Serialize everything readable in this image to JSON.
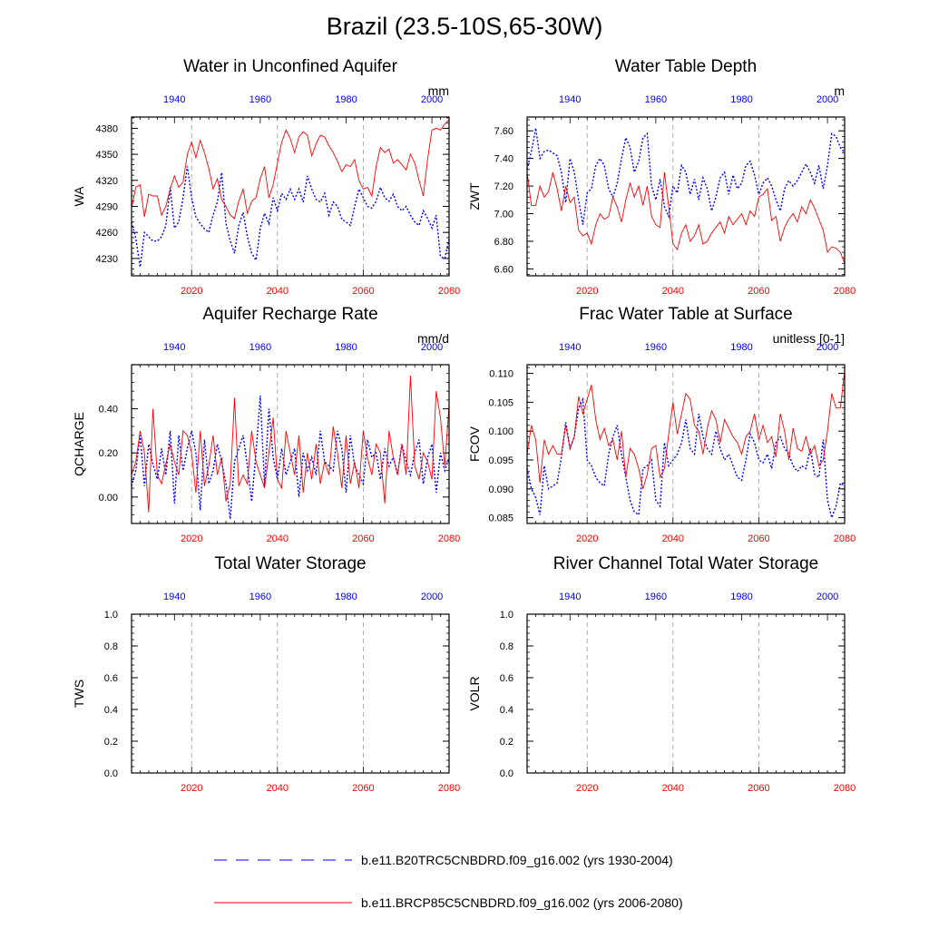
{
  "title": "Brazil (23.5-10S,65-30W)",
  "colors": {
    "historical": "#0000ff",
    "future": "#ff0000",
    "grid": "#9a9a9a"
  },
  "legend": {
    "entries": [
      {
        "label": "b.e11.B20TRC5CNBDRD.f09_g16.002 (yrs 1930-2004)",
        "series": "historical",
        "style": "dashed"
      },
      {
        "label": "b.e11.BRCP85C5CNBDRD.f09_g16.002 (yrs 2006-2080)",
        "series": "future",
        "style": "solid"
      }
    ]
  },
  "chart_data": [
    {
      "type": "line",
      "title": "Water in Unconfined Aquifer",
      "ylabel": "WA",
      "units": "mm",
      "ylim": [
        4210,
        4393
      ],
      "yticks": [
        4230,
        4260,
        4290,
        4320,
        4350,
        4380
      ],
      "ytick_labels": [
        "4230",
        "4260",
        "4290",
        "4320",
        "4350",
        "4380"
      ],
      "bottom_axis": {
        "range": [
          2006,
          2080
        ],
        "ticks": [
          2020,
          2040,
          2060,
          2080
        ]
      },
      "top_axis": {
        "range": [
          1930,
          2004
        ],
        "ticks": [
          1940,
          1960,
          1980,
          2000
        ]
      },
      "series": [
        {
          "name": "b.e11.B20TRC5CNBDRD.f09_g16.002 (yrs 1930-2004)",
          "years": "1930-2004",
          "values": [
            4272,
            4253,
            4220,
            4260,
            4255,
            4250,
            4250,
            4255,
            4268,
            4312,
            4265,
            4272,
            4300,
            4336,
            4300,
            4278,
            4270,
            4264,
            4260,
            4280,
            4295,
            4329,
            4270,
            4250,
            4236,
            4268,
            4283,
            4255,
            4236,
            4228,
            4265,
            4282,
            4270,
            4300,
            4285,
            4305,
            4298,
            4310,
            4298,
            4310,
            4295,
            4325,
            4310,
            4298,
            4295,
            4305,
            4280,
            4295,
            4290,
            4275,
            4272,
            4268,
            4290,
            4310,
            4300,
            4290,
            4288,
            4296,
            4312,
            4300,
            4296,
            4304,
            4290,
            4285,
            4290,
            4280,
            4272,
            4268,
            4285,
            4276,
            4265,
            4280,
            4232,
            4230,
            4252
          ]
        },
        {
          "name": "b.e11.BRCP85C5CNBDRD.f09_g16.002 (yrs 2006-2080)",
          "years": "2006-2080",
          "values": [
            4288,
            4312,
            4315,
            4278,
            4304,
            4302,
            4302,
            4280,
            4290,
            4310,
            4325,
            4312,
            4318,
            4350,
            4364,
            4346,
            4366,
            4352,
            4334,
            4310,
            4322,
            4298,
            4290,
            4280,
            4276,
            4296,
            4310,
            4282,
            4296,
            4300,
            4322,
            4336,
            4300,
            4315,
            4340,
            4364,
            4378,
            4368,
            4352,
            4370,
            4376,
            4372,
            4348,
            4362,
            4372,
            4370,
            4360,
            4352,
            4342,
            4330,
            4338,
            4336,
            4344,
            4320,
            4310,
            4312,
            4302,
            4336,
            4358,
            4352,
            4356,
            4340,
            4344,
            4338,
            4332,
            4350,
            4340,
            4320,
            4302,
            4345,
            4378,
            4380,
            4378,
            4385,
            4390
          ]
        }
      ]
    },
    {
      "type": "line",
      "title": "Water Table Depth",
      "ylabel": "ZWT",
      "units": "m",
      "ylim": [
        6.55,
        7.7
      ],
      "yticks": [
        6.6,
        6.8,
        7.0,
        7.2,
        7.4,
        7.6
      ],
      "ytick_labels": [
        "6.60",
        "6.80",
        "7.00",
        "7.20",
        "7.40",
        "7.60"
      ],
      "bottom_axis": {
        "range": [
          2006,
          2080
        ],
        "ticks": [
          2020,
          2040,
          2060,
          2080
        ]
      },
      "top_axis": {
        "range": [
          1930,
          2004
        ],
        "ticks": [
          1940,
          1960,
          1980,
          2000
        ]
      },
      "series": [
        {
          "name": "b.e11.B20TRC5CNBDRD.f09_g16.002 (yrs 1930-2004)",
          "years": "1930-2004",
          "values": [
            7.32,
            7.45,
            7.62,
            7.4,
            7.45,
            7.46,
            7.44,
            7.42,
            7.3,
            7.08,
            7.4,
            7.3,
            7.1,
            6.92,
            7.15,
            7.18,
            7.35,
            7.4,
            7.35,
            7.18,
            7.12,
            7.22,
            7.4,
            7.55,
            7.48,
            7.3,
            7.38,
            7.55,
            7.58,
            7.2,
            7.1,
            7.25,
            7.05,
            6.98,
            7.2,
            7.15,
            7.35,
            7.3,
            7.14,
            7.25,
            7.1,
            7.26,
            7.18,
            7.02,
            7.12,
            7.26,
            7.3,
            7.14,
            7.28,
            7.18,
            7.22,
            7.35,
            7.38,
            7.28,
            7.14,
            7.22,
            7.26,
            7.2,
            7.1,
            7.02,
            7.18,
            7.24,
            7.2,
            7.24,
            7.3,
            7.36,
            7.3,
            7.22,
            7.35,
            7.18,
            7.35,
            7.58,
            7.56,
            7.48,
            7.44
          ]
        },
        {
          "name": "b.e11.BRCP85C5CNBDRD.f09_g16.002 (yrs 2006-2080)",
          "years": "2006-2080",
          "values": [
            7.3,
            7.06,
            7.06,
            7.2,
            7.12,
            7.16,
            7.3,
            7.18,
            7.02,
            7.2,
            7.08,
            7.12,
            6.88,
            6.84,
            6.86,
            6.78,
            6.92,
            7.0,
            6.96,
            6.98,
            7.12,
            7.05,
            6.94,
            7.1,
            7.22,
            7.12,
            7.2,
            7.06,
            7.2,
            6.98,
            6.92,
            6.9,
            7.3,
            7.05,
            6.78,
            6.74,
            6.86,
            6.92,
            6.8,
            6.84,
            6.92,
            6.78,
            6.8,
            6.86,
            6.9,
            6.94,
            6.86,
            6.98,
            6.92,
            6.96,
            7.0,
            6.92,
            7.02,
            6.98,
            7.12,
            7.14,
            7.18,
            6.95,
            6.98,
            6.8,
            6.9,
            6.96,
            7.0,
            6.94,
            7.05,
            7.0,
            7.1,
            7.04,
            6.96,
            6.88,
            6.72,
            6.76,
            6.75,
            6.72,
            6.64
          ]
        }
      ]
    },
    {
      "type": "line",
      "title": "Aquifer Recharge Rate",
      "ylabel": "QCHARGE",
      "units": "mm/d",
      "ylim": [
        -0.12,
        0.6
      ],
      "yticks": [
        0.0,
        0.2,
        0.4
      ],
      "ytick_labels": [
        "0.00",
        "0.20",
        "0.40"
      ],
      "bottom_axis": {
        "range": [
          2006,
          2080
        ],
        "ticks": [
          2020,
          2040,
          2060,
          2080
        ]
      },
      "top_axis": {
        "range": [
          1930,
          2004
        ],
        "ticks": [
          1940,
          1960,
          1980,
          2000
        ]
      },
      "series": [
        {
          "name": "b.e11.B20TRC5CNBDRD.f09_g16.002 (yrs 1930-2004)",
          "years": "1930-2004",
          "values": [
            0.05,
            0.12,
            0.28,
            0.05,
            0.24,
            0.15,
            0.08,
            0.22,
            0.1,
            0.3,
            -0.03,
            0.28,
            0.12,
            0.22,
            0.3,
            0.2,
            -0.06,
            0.26,
            0.06,
            0.12,
            0.24,
            0.16,
            0.06,
            -0.1,
            0.16,
            0.22,
            0.28,
            0.14,
            -0.02,
            0.2,
            0.46,
            0.05,
            0.4,
            0.18,
            0.08,
            0.22,
            0.1,
            0.16,
            0.22,
            0.0,
            0.2,
            0.12,
            0.18,
            0.1,
            0.3,
            0.16,
            0.14,
            0.12,
            0.3,
            0.22,
            0.02,
            0.28,
            0.14,
            0.1,
            0.06,
            0.26,
            0.18,
            0.2,
            0.08,
            0.22,
            0.14,
            0.18,
            0.1,
            0.24,
            0.16,
            0.1,
            0.2,
            0.26,
            0.06,
            0.18,
            0.24,
            0.02,
            0.2,
            0.12,
            0.18
          ]
        },
        {
          "name": "b.e11.BRCP85C5CNBDRD.f09_g16.002 (yrs 2006-2080)",
          "years": "2006-2080",
          "values": [
            0.1,
            0.16,
            0.3,
            0.2,
            -0.07,
            0.4,
            0.1,
            0.06,
            0.15,
            0.24,
            0.16,
            0.1,
            0.3,
            0.28,
            0.2,
            0.02,
            0.3,
            0.05,
            0.14,
            0.28,
            0.1,
            0.18,
            -0.02,
            0.06,
            0.45,
            0.05,
            0.1,
            0.06,
            0.3,
            0.16,
            0.1,
            0.04,
            0.2,
            0.36,
            0.08,
            0.04,
            0.3,
            0.2,
            0.1,
            0.28,
            0.02,
            0.2,
            0.08,
            0.24,
            0.06,
            0.16,
            0.1,
            0.32,
            0.2,
            0.04,
            0.28,
            0.06,
            0.16,
            0.04,
            0.3,
            0.18,
            0.1,
            0.24,
            0.2,
            -0.03,
            0.3,
            0.18,
            0.1,
            0.24,
            0.1,
            0.55,
            0.14,
            0.08,
            0.2,
            0.16,
            0.08,
            0.48,
            0.36,
            0.14,
            0.42
          ]
        }
      ]
    },
    {
      "type": "line",
      "title": "Frac Water Table at Surface",
      "ylabel": "FCOV",
      "units": "unitless [0-1]",
      "ylim": [
        0.084,
        0.1115
      ],
      "yticks": [
        0.085,
        0.09,
        0.095,
        0.1,
        0.105,
        0.11
      ],
      "ytick_labels": [
        "0.085",
        "0.090",
        "0.095",
        "0.100",
        "0.105",
        "0.110"
      ],
      "bottom_axis": {
        "range": [
          2006,
          2080
        ],
        "ticks": [
          2020,
          2040,
          2060,
          2080
        ]
      },
      "top_axis": {
        "range": [
          1930,
          2004
        ],
        "ticks": [
          1940,
          1960,
          1980,
          2000
        ]
      },
      "series": [
        {
          "name": "b.e11.B20TRC5CNBDRD.f09_g16.002 (yrs 1930-2004)",
          "years": "1930-2004",
          "values": [
            0.0935,
            0.09,
            0.0885,
            0.0855,
            0.094,
            0.09,
            0.0905,
            0.091,
            0.0955,
            0.1015,
            0.097,
            0.099,
            0.104,
            0.1055,
            0.095,
            0.094,
            0.092,
            0.091,
            0.0905,
            0.096,
            0.099,
            0.101,
            0.096,
            0.092,
            0.088,
            0.086,
            0.0855,
            0.0935,
            0.094,
            0.095,
            0.088,
            0.087,
            0.098,
            0.094,
            0.095,
            0.096,
            0.098,
            0.102,
            0.097,
            0.096,
            0.103,
            0.099,
            0.097,
            0.096,
            0.1,
            0.097,
            0.095,
            0.096,
            0.094,
            0.092,
            0.0915,
            0.095,
            0.0995,
            0.098,
            0.095,
            0.0945,
            0.096,
            0.0935,
            0.098,
            0.099,
            0.097,
            0.096,
            0.094,
            0.093,
            0.094,
            0.0935,
            0.097,
            0.0925,
            0.092,
            0.0985,
            0.088,
            0.085,
            0.087,
            0.091,
            0.0905
          ]
        },
        {
          "name": "b.e11.BRCP85C5CNBDRD.f09_g16.002 (yrs 2006-2080)",
          "years": "2006-2080",
          "values": [
            0.096,
            0.101,
            0.0985,
            0.091,
            0.0985,
            0.096,
            0.0975,
            0.096,
            0.096,
            0.101,
            0.097,
            0.099,
            0.106,
            0.103,
            0.1055,
            0.108,
            0.102,
            0.0985,
            0.1005,
            0.0975,
            0.0985,
            0.095,
            0.1,
            0.092,
            0.097,
            0.096,
            0.0935,
            0.09,
            0.0925,
            0.097,
            0.0975,
            0.092,
            0.0935,
            0.0995,
            0.105,
            0.0995,
            0.103,
            0.1065,
            0.1055,
            0.101,
            0.1,
            0.096,
            0.1005,
            0.1035,
            0.102,
            0.098,
            0.102,
            0.1005,
            0.099,
            0.098,
            0.096,
            0.099,
            0.1,
            0.103,
            0.0985,
            0.101,
            0.098,
            0.099,
            0.0955,
            0.103,
            0.1,
            0.095,
            0.1005,
            0.097,
            0.0965,
            0.099,
            0.096,
            0.0975,
            0.094,
            0.095,
            0.1,
            0.1065,
            0.104,
            0.104,
            0.1105
          ]
        }
      ]
    },
    {
      "type": "line",
      "title": "Total Water Storage",
      "ylabel": "TWS",
      "units": "",
      "ylim": [
        0.0,
        1.0
      ],
      "yticks": [
        0.0,
        0.2,
        0.4,
        0.6,
        0.8,
        1.0
      ],
      "ytick_labels": [
        "0.0",
        "0.2",
        "0.4",
        "0.6",
        "0.8",
        "1.0"
      ],
      "bottom_axis": {
        "range": [
          2006,
          2080
        ],
        "ticks": [
          2020,
          2040,
          2060,
          2080
        ]
      },
      "top_axis": {
        "range": [
          1930,
          2004
        ],
        "ticks": [
          1940,
          1960,
          1980,
          2000
        ]
      },
      "series": []
    },
    {
      "type": "line",
      "title": "River Channel Total Water Storage",
      "ylabel": "VOLR",
      "units": "",
      "ylim": [
        0.0,
        1.0
      ],
      "yticks": [
        0.0,
        0.2,
        0.4,
        0.6,
        0.8,
        1.0
      ],
      "ytick_labels": [
        "0.0",
        "0.2",
        "0.4",
        "0.6",
        "0.8",
        "1.0"
      ],
      "bottom_axis": {
        "range": [
          2006,
          2080
        ],
        "ticks": [
          2020,
          2040,
          2060,
          2080
        ]
      },
      "top_axis": {
        "range": [
          1930,
          2004
        ],
        "ticks": [
          1940,
          1960,
          1980,
          2000
        ]
      },
      "series": []
    }
  ]
}
